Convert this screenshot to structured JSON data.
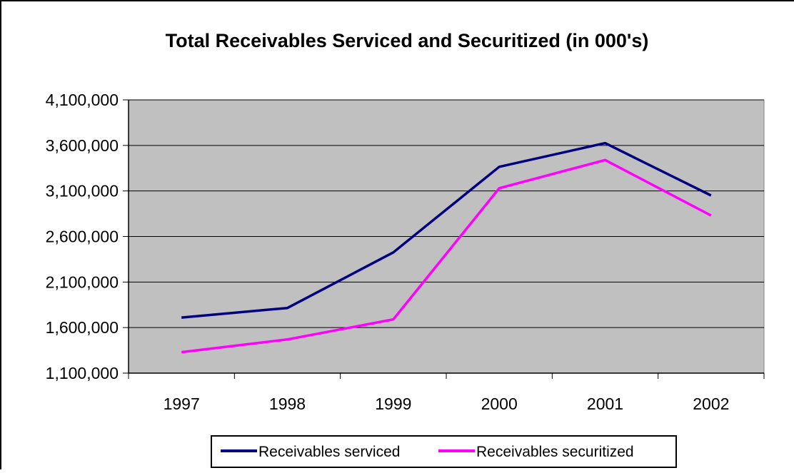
{
  "chart_data": {
    "type": "line",
    "title": "Total Receivables Serviced and Securitized (in 000's)",
    "xlabel": "",
    "ylabel": "",
    "categories": [
      "1997",
      "1998",
      "1999",
      "2000",
      "2001",
      "2002"
    ],
    "ylim": [
      1100000,
      4100000
    ],
    "yticks": [
      1100000,
      1600000,
      2100000,
      2600000,
      3100000,
      3600000,
      4100000
    ],
    "ytick_labels": [
      "1,100,000",
      "1,600,000",
      "2,100,000",
      "2,600,000",
      "3,100,000",
      "3,600,000",
      "4,100,000"
    ],
    "grid": true,
    "legend_position": "bottom",
    "plot_background": "#C0C0C0",
    "series": [
      {
        "name": "Receivables serviced",
        "color": "#000080",
        "values": [
          1710000,
          1815000,
          2425000,
          3365000,
          3625000,
          3050000
        ]
      },
      {
        "name": "Receivables securitized",
        "color": "#FF00FF",
        "values": [
          1330000,
          1470000,
          1690000,
          3130000,
          3440000,
          2830000
        ]
      }
    ]
  }
}
